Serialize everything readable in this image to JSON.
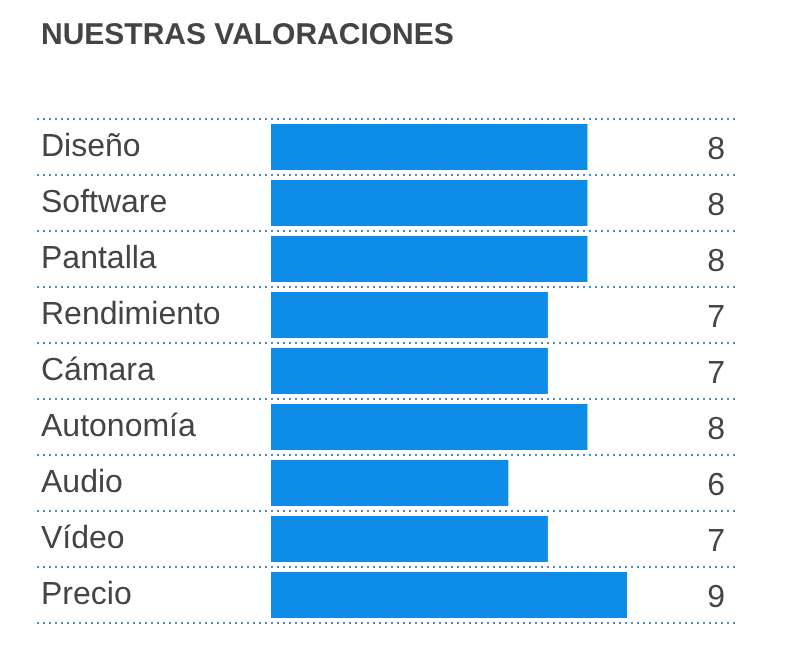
{
  "chart_data": {
    "type": "bar",
    "orientation": "horizontal",
    "title": "NUESTRAS VALORACIONES",
    "categories": [
      "Diseño",
      "Software",
      "Pantalla",
      "Rendimiento",
      "Cámara",
      "Autonomía",
      "Audio",
      "Vídeo",
      "Precio"
    ],
    "values": [
      8,
      8,
      8,
      7,
      7,
      8,
      6,
      7,
      9
    ],
    "color": "#0d8ce8",
    "data_labels": true,
    "grid": "y"
  }
}
